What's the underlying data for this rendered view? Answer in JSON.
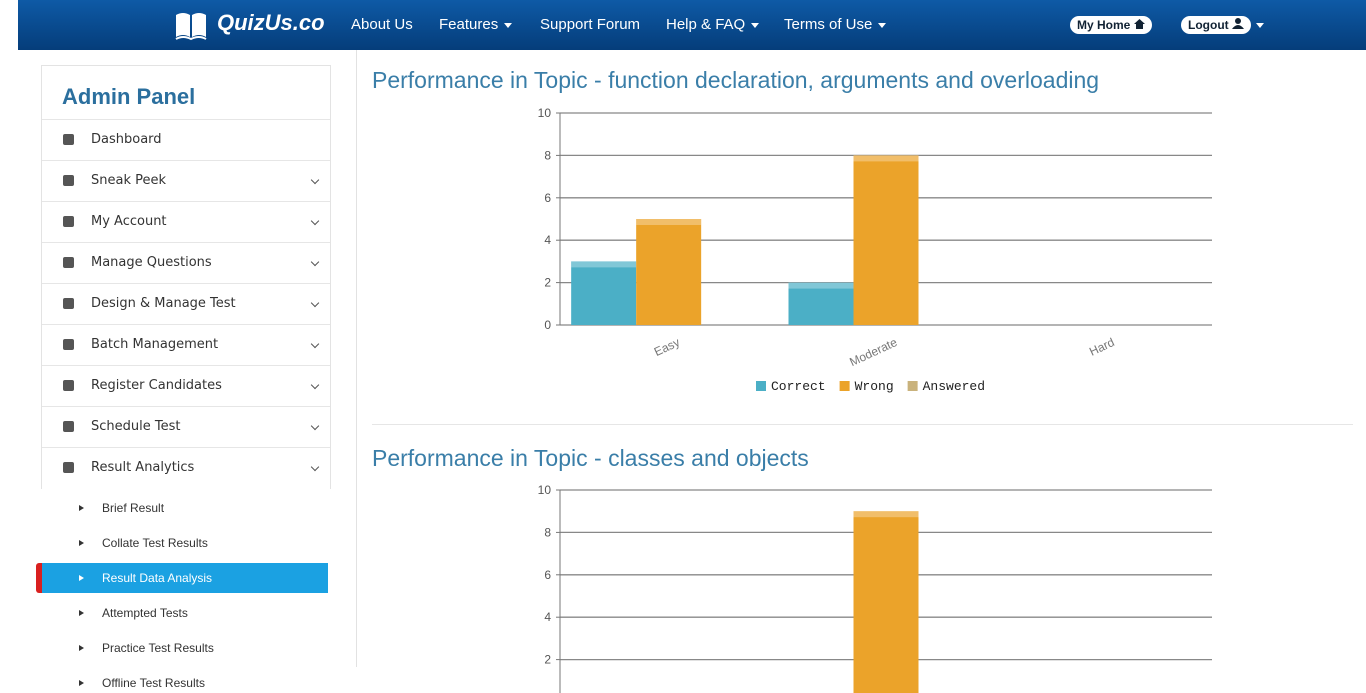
{
  "nav": {
    "brand": "QuizUs.co",
    "links": [
      {
        "label": "About Us",
        "dropdown": false
      },
      {
        "label": "Features",
        "dropdown": true
      },
      {
        "label": "Support Forum",
        "dropdown": false
      },
      {
        "label": "Help & FAQ",
        "dropdown": true
      },
      {
        "label": "Terms of Use",
        "dropdown": true
      }
    ],
    "my_home": "My Home",
    "logout": "Logout"
  },
  "sidebar": {
    "title": "Admin Panel",
    "items": [
      "Dashboard",
      "Sneak Peek",
      "My Account",
      "Manage Questions",
      "Design & Manage Test",
      "Batch Management",
      "Register Candidates",
      "Schedule Test",
      "Result Analytics"
    ],
    "subitems": [
      "Brief Result",
      "Collate Test Results",
      "Result Data Analysis",
      "Attempted Tests",
      "Practice Test Results",
      "Offline Test Results"
    ],
    "active_subitem": 2
  },
  "chart_data": [
    {
      "type": "bar",
      "title": "Performance in Topic - function declaration, arguments and overloading",
      "categories": [
        "Easy",
        "Moderate",
        "Hard"
      ],
      "series": [
        {
          "name": "Correct",
          "color": "#4bafc6",
          "values": [
            3,
            2,
            0
          ]
        },
        {
          "name": "Wrong",
          "color": "#eba32a",
          "values": [
            5,
            8,
            0
          ]
        },
        {
          "name": "Answered",
          "color": "#c9b27c",
          "values": [
            0,
            0,
            0
          ]
        }
      ],
      "ylim": [
        0,
        10
      ],
      "yticks": [
        0,
        2,
        4,
        6,
        8,
        10
      ],
      "grid": true,
      "legend": "bottom"
    },
    {
      "type": "bar",
      "title": "Performance in Topic - classes and objects",
      "categories": [
        null
      ],
      "series": [
        {
          "color": "#4bafc6",
          "values": [
            0
          ]
        },
        {
          "color": "#eba32a",
          "values": [
            9
          ]
        },
        {
          "color": "#c9b27c",
          "values": [
            0
          ]
        }
      ],
      "ylim": [
        0,
        10
      ],
      "yticks": [
        2,
        4,
        6,
        8,
        10
      ],
      "grid": true
    }
  ]
}
